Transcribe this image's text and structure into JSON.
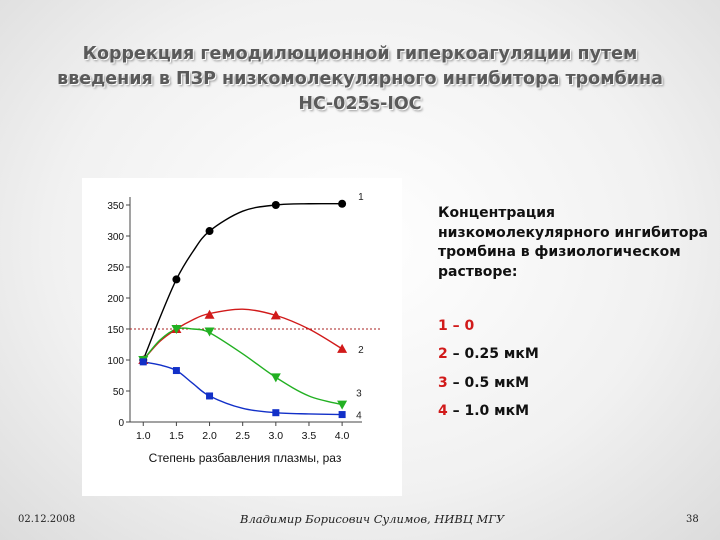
{
  "slide": {
    "title_lines": [
      "Коррекция гемодилюционной гиперкоагуляции путем",
      "введения в ПЗР низкомолекулярного ингибитора тромбина",
      "НС-025s-IОС"
    ],
    "footer_date": "02.12.2008",
    "footer_author": "Владимир Борисович Сулимов, НИВЦ МГУ",
    "footer_page": "38"
  },
  "legend": {
    "title": "Концентрация низкомолекулярного ингибитора тромбина в физиологическом растворе:",
    "items": [
      {
        "num": "1",
        "text": " – 0"
      },
      {
        "num": "2",
        "text": " – 0.25 мкМ"
      },
      {
        "num": "3",
        "text": " – 0.5 мкМ"
      },
      {
        "num": "4",
        "text": " – 1.0 мкМ"
      }
    ]
  },
  "chart_data": {
    "type": "line",
    "xlabel": "Степень разбавления плазмы,  раз",
    "ylabel": "",
    "xlim": [
      0.8,
      4.3
    ],
    "ylim": [
      0,
      350
    ],
    "x_ticks": [
      "1.0",
      "1.5",
      "2.0",
      "2.5",
      "3.0",
      "3.5",
      "4.0"
    ],
    "y_ticks": [
      "0",
      "50",
      "100",
      "150",
      "200",
      "250",
      "300",
      "350"
    ],
    "reference_line": 150,
    "series": [
      {
        "name": "1",
        "color": "#000000",
        "marker": "circle",
        "x": [
          1.0,
          1.5,
          2.0,
          3.0,
          4.0
        ],
        "y": [
          100,
          230,
          308,
          350,
          352
        ],
        "curve": [
          [
            1.0,
            100
          ],
          [
            1.25,
            168
          ],
          [
            1.5,
            230
          ],
          [
            1.75,
            275
          ],
          [
            2.0,
            308
          ],
          [
            2.5,
            340
          ],
          [
            3.0,
            350
          ],
          [
            3.5,
            352
          ],
          [
            4.0,
            352
          ]
        ]
      },
      {
        "name": "2",
        "color": "#d11a1a",
        "marker": "triangle-up",
        "x": [
          1.0,
          1.5,
          2.0,
          3.0,
          4.0
        ],
        "y": [
          100,
          150,
          173,
          172,
          118
        ],
        "curve": [
          [
            1.0,
            100
          ],
          [
            1.25,
            130
          ],
          [
            1.5,
            150
          ],
          [
            1.75,
            165
          ],
          [
            2.0,
            175
          ],
          [
            2.5,
            182
          ],
          [
            3.0,
            172
          ],
          [
            3.5,
            150
          ],
          [
            4.0,
            118
          ]
        ]
      },
      {
        "name": "3",
        "color": "#22b022",
        "marker": "triangle-down",
        "x": [
          1.0,
          1.5,
          2.0,
          3.0,
          4.0
        ],
        "y": [
          100,
          150,
          146,
          72,
          28
        ],
        "curve": [
          [
            1.0,
            100
          ],
          [
            1.25,
            132
          ],
          [
            1.5,
            150
          ],
          [
            1.75,
            150
          ],
          [
            2.0,
            144
          ],
          [
            2.5,
            110
          ],
          [
            3.0,
            72
          ],
          [
            3.5,
            42
          ],
          [
            4.0,
            28
          ]
        ]
      },
      {
        "name": "4",
        "color": "#1230c8",
        "marker": "square",
        "x": [
          1.0,
          1.5,
          2.0,
          3.0,
          4.0
        ],
        "y": [
          97,
          83,
          42,
          15,
          12
        ],
        "curve": [
          [
            1.0,
            97
          ],
          [
            1.25,
            92
          ],
          [
            1.5,
            83
          ],
          [
            1.75,
            62
          ],
          [
            2.0,
            42
          ],
          [
            2.5,
            22
          ],
          [
            3.0,
            15
          ],
          [
            3.5,
            13
          ],
          [
            4.0,
            12
          ]
        ]
      }
    ]
  }
}
